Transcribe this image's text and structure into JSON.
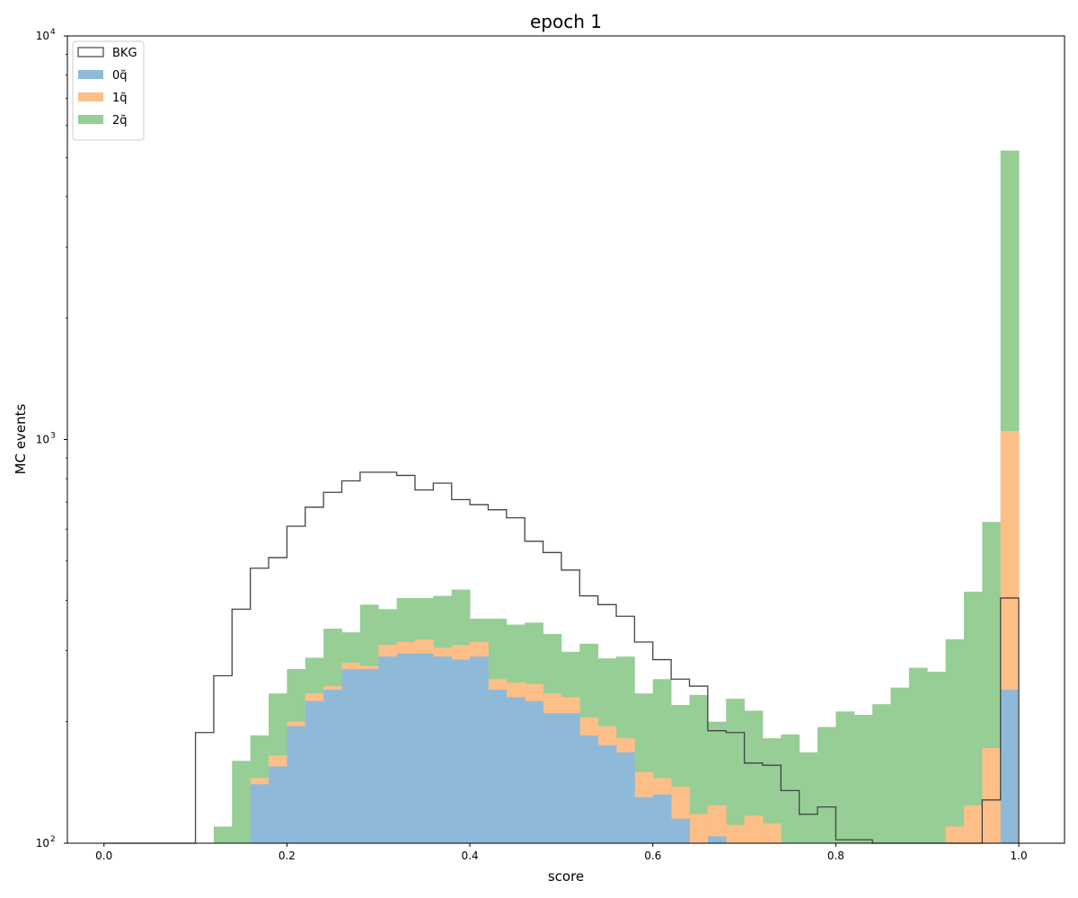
{
  "chart_data": {
    "type": "bar",
    "title": "epoch 1",
    "xlabel": "score",
    "ylabel": "MC events",
    "xlim": [
      -0.04,
      1.05
    ],
    "ylim": [
      100,
      10000
    ],
    "yscale": "log",
    "stacked": true,
    "grid": false,
    "legend_position": "top-left",
    "bin_edges": [
      0.0,
      0.02,
      0.04,
      0.06,
      0.08,
      0.1,
      0.12,
      0.14,
      0.16,
      0.18,
      0.2,
      0.22,
      0.24,
      0.26,
      0.28,
      0.3,
      0.32,
      0.34,
      0.36,
      0.38,
      0.4,
      0.42,
      0.44,
      0.46,
      0.48,
      0.5,
      0.52,
      0.54,
      0.56,
      0.58,
      0.6,
      0.62,
      0.64,
      0.66,
      0.68,
      0.7,
      0.72,
      0.74,
      0.76,
      0.78,
      0.8,
      0.82,
      0.84,
      0.86,
      0.88,
      0.9,
      0.92,
      0.94,
      0.96,
      0.98,
      1.0
    ],
    "x_ticks": [
      "0.0",
      "0.2",
      "0.4",
      "0.6",
      "0.8",
      "1.0"
    ],
    "x_tick_values": [
      0.0,
      0.2,
      0.4,
      0.6,
      0.8,
      1.0
    ],
    "y_ticks": [
      {
        "base": "10",
        "exp": "2",
        "value": 100
      },
      {
        "base": "10",
        "exp": "3",
        "value": 1000
      },
      {
        "base": "10",
        "exp": "4",
        "value": 10000
      }
    ],
    "series": [
      {
        "name": "0q̃",
        "legend_base": "0",
        "legend_sym": "q̃",
        "color": "#8fb9d9",
        "values": [
          0,
          0,
          0,
          0,
          0,
          0,
          0,
          0,
          140,
          155,
          195,
          225,
          240,
          270,
          270,
          290,
          295,
          295,
          290,
          285,
          290,
          240,
          230,
          225,
          210,
          210,
          185,
          175,
          168,
          130,
          132,
          115,
          0,
          104,
          0,
          0,
          0,
          0,
          0,
          0,
          0,
          0,
          0,
          0,
          0,
          0,
          0,
          0,
          0,
          240
        ]
      },
      {
        "name": "1q̃",
        "legend_base": "1",
        "legend_sym": "q̃",
        "color": "#fdbf87",
        "values": [
          0,
          0,
          0,
          0,
          0,
          0,
          0,
          0,
          145,
          165,
          200,
          235,
          245,
          280,
          275,
          310,
          315,
          320,
          305,
          310,
          315,
          255,
          250,
          248,
          235,
          230,
          205,
          195,
          182,
          150,
          145,
          138,
          118,
          124,
          111,
          117,
          112,
          0,
          0,
          0,
          0,
          0,
          0,
          0,
          0,
          0,
          110,
          124,
          172,
          1050
        ]
      },
      {
        "name": "2q̃",
        "legend_base": "2",
        "legend_sym": "q̃",
        "color": "#96ce96",
        "values": [
          0,
          0,
          0,
          0,
          0,
          0,
          110,
          160,
          185,
          235,
          270,
          288,
          340,
          333,
          390,
          380,
          405,
          405,
          410,
          425,
          360,
          360,
          348,
          352,
          330,
          298,
          312,
          287,
          290,
          235,
          255,
          220,
          233,
          200,
          228,
          213,
          182,
          186,
          168,
          194,
          212,
          208,
          221,
          243,
          272,
          266,
          320,
          420,
          625,
          5200
        ]
      },
      {
        "name": "BKG",
        "legend_base": "BKG",
        "legend_sym": "",
        "color": "#444444",
        "style": "step",
        "values": [
          0,
          0,
          0,
          0,
          0,
          188,
          260,
          380,
          480,
          510,
          610,
          680,
          740,
          790,
          830,
          830,
          815,
          750,
          780,
          710,
          690,
          670,
          640,
          560,
          525,
          475,
          410,
          390,
          365,
          315,
          285,
          255,
          245,
          190,
          188,
          158,
          156,
          135,
          118,
          123,
          102,
          102,
          0,
          0,
          0,
          0,
          0,
          0,
          128,
          405
        ]
      }
    ]
  }
}
